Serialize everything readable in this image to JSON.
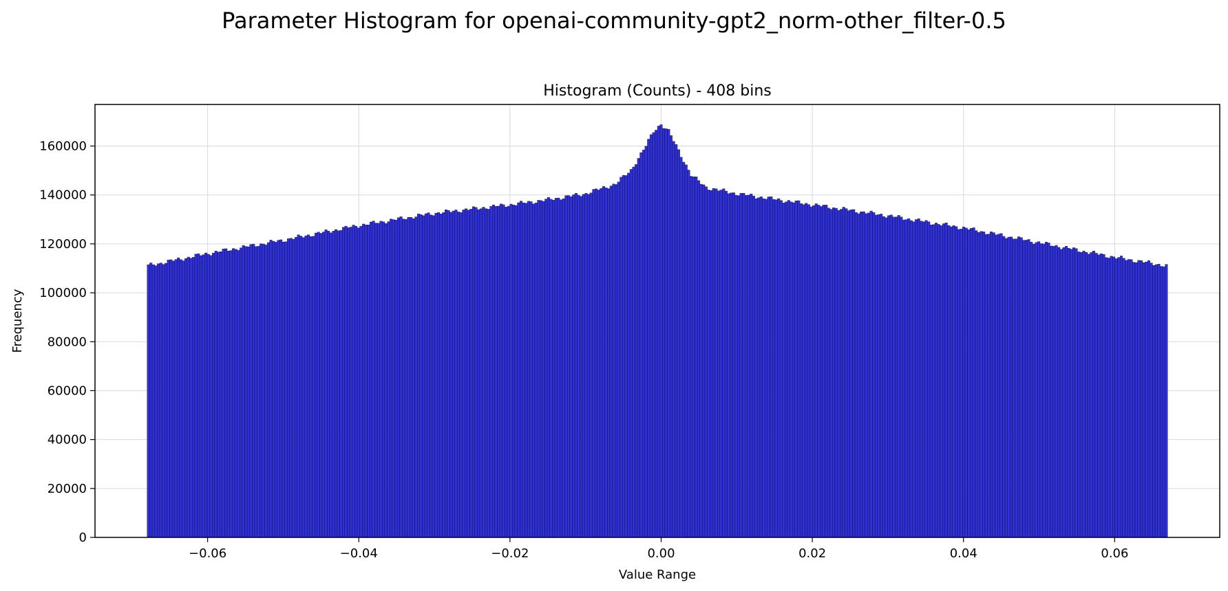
{
  "figure": {
    "suptitle": "Parameter Histogram for openai-community-gpt2_norm-other_filter-0.5"
  },
  "colors": {
    "bar_fill": "#3030d8",
    "bar_edge": "#000000",
    "grid": "#d9d9d9",
    "axes": "#000000",
    "background": "#ffffff"
  },
  "chart_data": {
    "type": "bar",
    "title": "Histogram (Counts) - 408 bins",
    "xlabel": "Value Range",
    "ylabel": "Frequency",
    "bins": 408,
    "x_range": [
      -0.068,
      0.067
    ],
    "xlim": [
      -0.0749,
      0.0739
    ],
    "ylim": [
      0,
      177000
    ],
    "grid": true,
    "x_ticks": [
      -0.06,
      -0.04,
      -0.02,
      0.0,
      0.02,
      0.04,
      0.06
    ],
    "x_tick_labels": [
      "−0.06",
      "−0.04",
      "−0.02",
      "0.00",
      "0.02",
      "0.04",
      "0.06"
    ],
    "y_ticks": [
      0,
      20000,
      40000,
      60000,
      80000,
      100000,
      120000,
      140000,
      160000
    ],
    "y_tick_labels": [
      "0",
      "20000",
      "40000",
      "60000",
      "80000",
      "100000",
      "120000",
      "140000",
      "160000"
    ],
    "profile": {
      "description": "Approximate bin-count envelope read from the figure (value in data units -> count); bars interpolate between points",
      "x": [
        -0.068,
        -0.06,
        -0.05,
        -0.04,
        -0.03,
        -0.02,
        -0.015,
        -0.01,
        -0.006,
        -0.004,
        -0.002,
        -0.001,
        0.0,
        0.001,
        0.002,
        0.004,
        0.006,
        0.01,
        0.02,
        0.03,
        0.04,
        0.05,
        0.06,
        0.067
      ],
      "y": [
        111000,
        116000,
        121500,
        127500,
        132500,
        136000,
        138000,
        140500,
        144500,
        150000,
        160000,
        166000,
        169000,
        166000,
        160000,
        148000,
        143000,
        140500,
        136000,
        131500,
        126500,
        120500,
        114500,
        111000
      ]
    }
  }
}
